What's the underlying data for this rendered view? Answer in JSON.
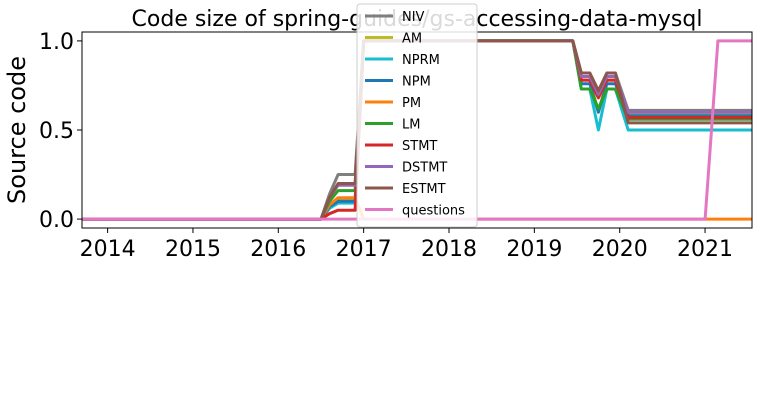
{
  "chart_data": {
    "type": "line",
    "title": "Code size of spring-guides/gs-accessing-data-mysql",
    "xlabel": "",
    "ylabel": "Source code",
    "xlim": [
      2013.7,
      2021.55
    ],
    "ylim": [
      -0.05,
      1.05
    ],
    "xticks": [
      "2014",
      "2015",
      "2016",
      "2017",
      "2018",
      "2019",
      "2020",
      "2021"
    ],
    "yticks": [
      "0.0",
      "0.5",
      "1.0"
    ],
    "grid": false,
    "legend_position": "top-center",
    "series": [
      {
        "name": "NIV",
        "color": "#7f7f7f",
        "points": [
          [
            2013.7,
            0
          ],
          [
            2016.5,
            0
          ],
          [
            2016.6,
            0.14
          ],
          [
            2016.7,
            0.25
          ],
          [
            2016.9,
            0.25
          ],
          [
            2017.0,
            1
          ],
          [
            2019.45,
            1
          ],
          [
            2019.55,
            0.82
          ],
          [
            2019.65,
            0.82
          ],
          [
            2019.75,
            0.72
          ],
          [
            2019.85,
            0.82
          ],
          [
            2019.95,
            0.82
          ],
          [
            2020.1,
            0.61
          ],
          [
            2021.55,
            0.61
          ]
        ]
      },
      {
        "name": "AM",
        "color": "#bcbd22",
        "points": [
          [
            2013.7,
            0
          ],
          [
            2016.5,
            0
          ],
          [
            2016.6,
            0.08
          ],
          [
            2016.7,
            0.11
          ],
          [
            2016.9,
            0.11
          ],
          [
            2017.0,
            1
          ],
          [
            2019.45,
            1
          ],
          [
            2019.55,
            0.78
          ],
          [
            2019.65,
            0.78
          ],
          [
            2019.75,
            0.6
          ],
          [
            2019.85,
            0.78
          ],
          [
            2019.95,
            0.78
          ],
          [
            2020.1,
            0.59
          ],
          [
            2021.55,
            0.59
          ]
        ]
      },
      {
        "name": "NPRM",
        "color": "#17becf",
        "points": [
          [
            2013.7,
            0
          ],
          [
            2016.5,
            0
          ],
          [
            2016.6,
            0.06
          ],
          [
            2016.7,
            0.09
          ],
          [
            2016.9,
            0.09
          ],
          [
            2017.0,
            1
          ],
          [
            2019.45,
            1
          ],
          [
            2019.55,
            0.73
          ],
          [
            2019.65,
            0.73
          ],
          [
            2019.75,
            0.5
          ],
          [
            2019.85,
            0.73
          ],
          [
            2019.95,
            0.73
          ],
          [
            2020.1,
            0.5
          ],
          [
            2021.55,
            0.5
          ]
        ]
      },
      {
        "name": "NPM",
        "color": "#1f77b4",
        "points": [
          [
            2013.7,
            0
          ],
          [
            2016.5,
            0
          ],
          [
            2016.6,
            0.07
          ],
          [
            2016.7,
            0.1
          ],
          [
            2016.9,
            0.1
          ],
          [
            2017.0,
            1
          ],
          [
            2019.45,
            1
          ],
          [
            2019.55,
            0.76
          ],
          [
            2019.65,
            0.76
          ],
          [
            2019.75,
            0.6
          ],
          [
            2019.85,
            0.76
          ],
          [
            2019.95,
            0.76
          ],
          [
            2020.1,
            0.58
          ],
          [
            2021.55,
            0.58
          ]
        ]
      },
      {
        "name": "PM",
        "color": "#ff7f0e",
        "points": [
          [
            2013.7,
            0
          ],
          [
            2016.5,
            0
          ],
          [
            2016.6,
            0.08
          ],
          [
            2016.7,
            0.12
          ],
          [
            2016.9,
            0.12
          ],
          [
            2017.0,
            0
          ],
          [
            2021.55,
            0
          ]
        ]
      },
      {
        "name": "LM",
        "color": "#2ca02c",
        "points": [
          [
            2013.7,
            0
          ],
          [
            2016.5,
            0
          ],
          [
            2016.6,
            0.1
          ],
          [
            2016.7,
            0.16
          ],
          [
            2016.9,
            0.16
          ],
          [
            2017.0,
            1
          ],
          [
            2019.45,
            1
          ],
          [
            2019.55,
            0.73
          ],
          [
            2019.65,
            0.73
          ],
          [
            2019.75,
            0.62
          ],
          [
            2019.85,
            0.73
          ],
          [
            2019.95,
            0.73
          ],
          [
            2020.1,
            0.56
          ],
          [
            2021.55,
            0.56
          ]
        ]
      },
      {
        "name": "STMT",
        "color": "#d62728",
        "points": [
          [
            2013.7,
            0
          ],
          [
            2016.5,
            0
          ],
          [
            2016.6,
            0.03
          ],
          [
            2016.7,
            0.05
          ],
          [
            2016.9,
            0.05
          ],
          [
            2017.0,
            1
          ],
          [
            2019.45,
            1
          ],
          [
            2019.55,
            0.78
          ],
          [
            2019.65,
            0.78
          ],
          [
            2019.75,
            0.68
          ],
          [
            2019.85,
            0.78
          ],
          [
            2019.95,
            0.78
          ],
          [
            2020.1,
            0.57
          ],
          [
            2021.55,
            0.57
          ]
        ]
      },
      {
        "name": "DSTMT",
        "color": "#9467bd",
        "points": [
          [
            2013.7,
            0
          ],
          [
            2016.5,
            0
          ],
          [
            2016.6,
            0.12
          ],
          [
            2016.7,
            0.19
          ],
          [
            2016.9,
            0.19
          ],
          [
            2017.0,
            1
          ],
          [
            2019.45,
            1
          ],
          [
            2019.55,
            0.8
          ],
          [
            2019.65,
            0.8
          ],
          [
            2019.75,
            0.7
          ],
          [
            2019.85,
            0.8
          ],
          [
            2019.95,
            0.8
          ],
          [
            2020.1,
            0.6
          ],
          [
            2021.55,
            0.6
          ]
        ]
      },
      {
        "name": "ESTMT",
        "color": "#8c564b",
        "points": [
          [
            2013.7,
            0
          ],
          [
            2016.5,
            0
          ],
          [
            2016.6,
            0.12
          ],
          [
            2016.7,
            0.2
          ],
          [
            2016.9,
            0.2
          ],
          [
            2017.0,
            1
          ],
          [
            2019.45,
            1
          ],
          [
            2019.55,
            0.82
          ],
          [
            2019.65,
            0.82
          ],
          [
            2019.75,
            0.72
          ],
          [
            2019.85,
            0.82
          ],
          [
            2019.95,
            0.82
          ],
          [
            2020.1,
            0.54
          ],
          [
            2021.55,
            0.54
          ]
        ]
      },
      {
        "name": "questions",
        "color": "#e377c2",
        "points": [
          [
            2013.7,
            0
          ],
          [
            2021.0,
            0
          ],
          [
            2021.15,
            1
          ],
          [
            2021.55,
            1
          ]
        ]
      }
    ]
  }
}
